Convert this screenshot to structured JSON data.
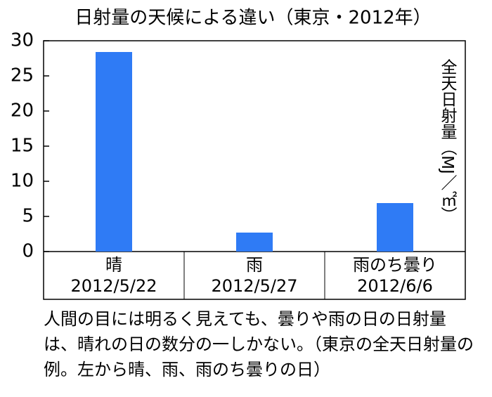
{
  "chart_data": {
    "type": "bar",
    "title": "日射量の天候による違い（東京・2012年）",
    "categories": [
      "晴",
      "雨",
      "雨のち曇り"
    ],
    "dates": [
      "2012/5/22",
      "2012/5/27",
      "2012/6/6"
    ],
    "values": [
      28.4,
      2.7,
      6.9
    ],
    "color": "#2f7bf5",
    "ylim": [
      0,
      30
    ],
    "yticks": [
      0,
      5,
      10,
      15,
      20,
      25,
      30
    ],
    "ylabel": "全天日射量（MJ／㎡）",
    "grid": false
  },
  "caption": "人間の目には明るく見えても、曇りや雨の日の日射量は、晴れの日の数分の一しかない。（東京の全天日射量の例。左から晴、雨、雨のち曇りの日）"
}
